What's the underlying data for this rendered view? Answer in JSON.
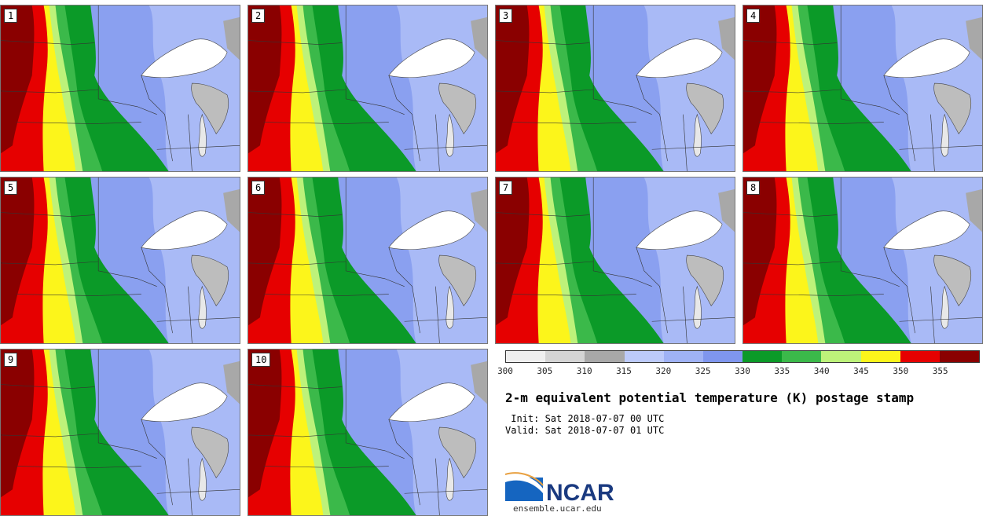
{
  "panels": [
    "1",
    "2",
    "3",
    "4",
    "5",
    "6",
    "7",
    "8",
    "9",
    "10"
  ],
  "colorbar": {
    "ticks": [
      "300",
      "305",
      "310",
      "315",
      "320",
      "325",
      "330",
      "335",
      "340",
      "345",
      "350",
      "355"
    ],
    "colors": [
      "#efefef",
      "#d4d4d4",
      "#a8a8a8",
      "#bccafa",
      "#9fb2f5",
      "#7f96ee",
      "#0b9a28",
      "#3bb94a",
      "#bdf27a",
      "#fcf51b",
      "#e60000",
      "#8a0000"
    ]
  },
  "title": "2-m equivalent potential temperature (K) postage stamp",
  "init": " Init: Sat 2018-07-07 00 UTC",
  "valid": "Valid: Sat 2018-07-07 01 UTC",
  "logo": {
    "text": "NCAR",
    "url": "ensemble.ucar.edu"
  }
}
